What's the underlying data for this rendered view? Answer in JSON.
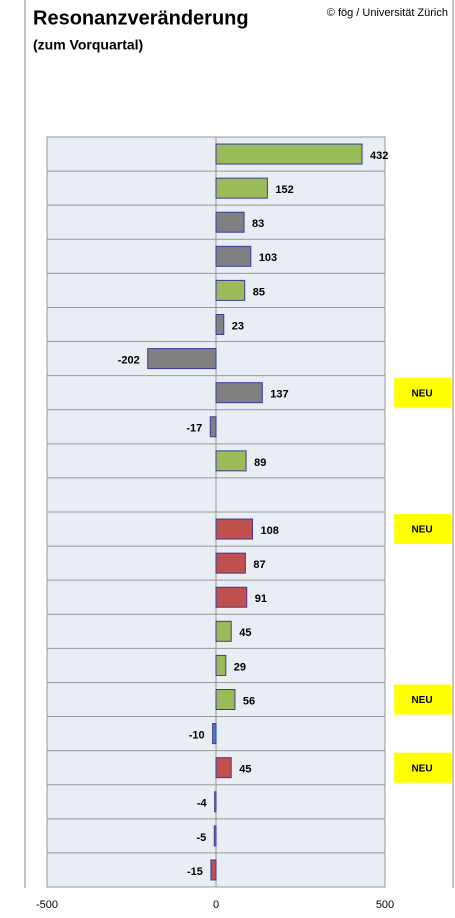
{
  "chart_data": {
    "type": "hbar",
    "title": "Resonanzveränderung",
    "subtitle": "(zum Vorquartal)",
    "credit": "© fög / Universität Zürich",
    "categories": [
      null,
      null,
      null,
      null,
      null,
      null,
      null,
      null,
      null,
      null,
      null,
      null,
      null,
      null,
      null,
      null,
      null,
      null,
      null,
      null,
      null,
      null
    ],
    "values": [
      432,
      152,
      83,
      103,
      85,
      23,
      -202,
      137,
      -17,
      89,
      null,
      108,
      87,
      91,
      45,
      29,
      56,
      -10,
      45,
      -4,
      -5,
      -15
    ],
    "colors": [
      "#9bbb59",
      "#9bbb59",
      "#808080",
      "#808080",
      "#9bbb59",
      "#808080",
      "#808080",
      "#808080",
      "#808080",
      "#9bbb59",
      null,
      "#c0504d",
      "#c0504d",
      "#c0504d",
      "#9bbb59",
      "#9bbb59",
      "#9bbb59",
      "#4f81bd",
      "#c0504d",
      "#8497b0",
      "#b05fa8",
      "#c0504d"
    ],
    "annotations": [
      {
        "index": 7,
        "text": "NEU"
      },
      {
        "index": 11,
        "text": "NEU"
      },
      {
        "index": 16,
        "text": "NEU"
      },
      {
        "index": 18,
        "text": "NEU"
      }
    ],
    "annotation_color": "#ffff00",
    "xlim": [
      -500,
      500
    ],
    "xticks": [
      -500,
      0,
      500
    ],
    "grid": true
  }
}
